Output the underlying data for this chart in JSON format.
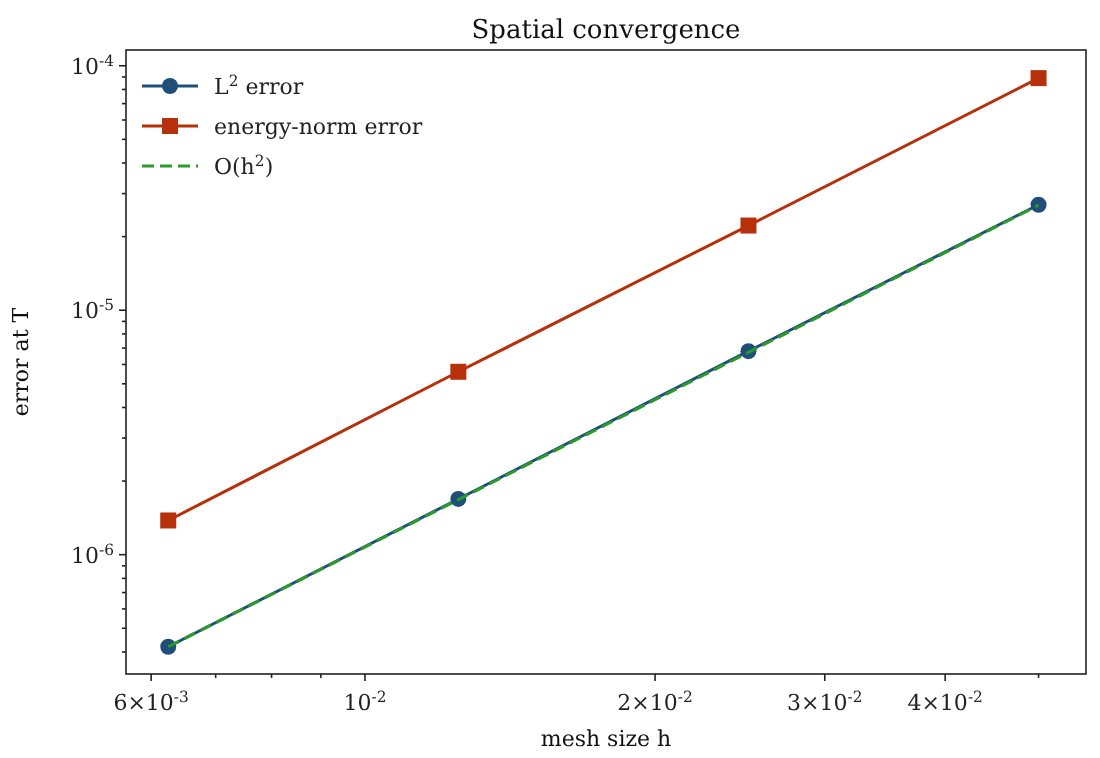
{
  "chart_data": {
    "type": "line",
    "title": "Spatial convergence",
    "xlabel": "mesh size h",
    "ylabel": "error at T",
    "log": "xy",
    "x": [
      0.00625,
      0.0125,
      0.025,
      0.05
    ],
    "xlim": [
      0.00565,
      0.056
    ],
    "ylim": [
      3.25e-07,
      0.000116
    ],
    "xticks": [
      {
        "value": 0.006,
        "label": "6×10$^{-3}$"
      },
      {
        "value": 0.007,
        "label": null
      },
      {
        "value": 0.008,
        "label": null
      },
      {
        "value": 0.009,
        "label": null
      },
      {
        "value": 0.01,
        "label": "10$^{-2}$"
      },
      {
        "value": 0.02,
        "label": "2×10$^{-2}$"
      },
      {
        "value": 0.03,
        "label": "3×10$^{-2}$"
      },
      {
        "value": 0.04,
        "label": "4×10$^{-2}$"
      },
      {
        "value": 0.05,
        "label": null
      }
    ],
    "yticks": [
      {
        "value": 1e-06,
        "label": "10$^{-6}$"
      },
      {
        "value": 1e-05,
        "label": "10$^{-5}$"
      },
      {
        "value": 0.0001,
        "label": "10$^{-4}$"
      },
      {
        "value": 4e-07,
        "label": null
      },
      {
        "value": 5e-07,
        "label": null
      },
      {
        "value": 6e-07,
        "label": null
      },
      {
        "value": 7e-07,
        "label": null
      },
      {
        "value": 8e-07,
        "label": null
      },
      {
        "value": 9e-07,
        "label": null
      },
      {
        "value": 2e-06,
        "label": null
      },
      {
        "value": 3e-06,
        "label": null
      },
      {
        "value": 4e-06,
        "label": null
      },
      {
        "value": 5e-06,
        "label": null
      },
      {
        "value": 6e-06,
        "label": null
      },
      {
        "value": 7e-06,
        "label": null
      },
      {
        "value": 8e-06,
        "label": null
      },
      {
        "value": 9e-06,
        "label": null
      },
      {
        "value": 2e-05,
        "label": null
      },
      {
        "value": 3e-05,
        "label": null
      },
      {
        "value": 4e-05,
        "label": null
      },
      {
        "value": 5e-05,
        "label": null
      },
      {
        "value": 6e-05,
        "label": null
      },
      {
        "value": 7e-05,
        "label": null
      },
      {
        "value": 8e-05,
        "label": null
      },
      {
        "value": 9e-05,
        "label": null
      }
    ],
    "grid": false,
    "legend": "top left",
    "series": [
      {
        "name": "L$^{2}$ error",
        "color": "#1f4e79",
        "values": [
          4.2e-07,
          1.69e-06,
          6.8e-06,
          2.7e-05
        ],
        "marker": "circle",
        "line_style": "solid"
      },
      {
        "name": "energy-norm error",
        "color": "#b5300b",
        "values": [
          1.38e-06,
          5.6e-06,
          2.22e-05,
          8.9e-05
        ],
        "marker": "square",
        "line_style": "solid"
      },
      {
        "name": "O(h$^{2}$)",
        "color": "#2a9a2a",
        "values": [
          4.2e-07,
          1.68e-06,
          6.72e-06,
          2.69e-05
        ],
        "marker": "none",
        "line_style": "dashed"
      }
    ]
  }
}
